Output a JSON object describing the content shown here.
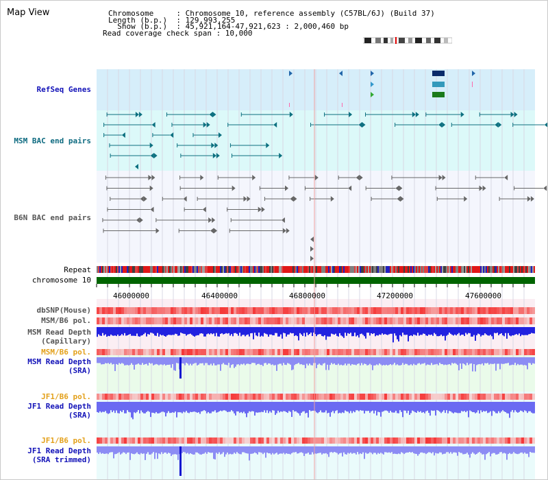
{
  "header": {
    "title": "Map View",
    "info_lines": [
      "Chromosome     : Chromosome 10, reference assembly (C57BL/6J) (Build 37)",
      "Length (b.p.)  : 129,993,255",
      "  Show (b.p.)  : 45,921,164-47,921,623 : 2,000,460 bp",
      "Read coverage check span : 10,000"
    ]
  },
  "tracks": {
    "refseq": "RefSeq Genes",
    "msm_bac": "MSM BAC end pairs",
    "b6n_bac": "B6N BAC end pairs",
    "repeat": "Repeat",
    "chromosome": "chromosome 10",
    "dbsnp": "dbSNP(Mouse)",
    "msm_b6_pol_1": "MSM/B6 pol.",
    "msm_depth_cap_1": "MSM Read Depth",
    "msm_depth_cap_2": "(Capillary)",
    "msm_b6_pol_2": "MSM/B6 pol.",
    "msm_depth_sra_1": "MSM Read Depth",
    "msm_depth_sra_2": "(SRA)",
    "jf1_b6_pol_1": "JF1/B6 pol.",
    "jf1_depth_sra_1": "JF1 Read Depth",
    "jf1_depth_sra_2": "(SRA)",
    "jf1_b6_pol_2": "JF1/B6 pol.",
    "jf1_depth_trim_1": "JF1 Read Depth",
    "jf1_depth_trim_2": "(SRA trimmed)"
  },
  "axis": {
    "tick_labels": [
      "46000000",
      "46400000",
      "46800000",
      "47200000",
      "47600000"
    ]
  },
  "colors": {
    "refseq_bg": "#d6eefa",
    "msm_bg": "#dcf9f9",
    "b6n_bg": "#f4f6fd",
    "chromosome": "#006400",
    "depth_blue": "#1818e8",
    "depth_light": "#7a7af8",
    "pol_red": "#f04848"
  }
}
